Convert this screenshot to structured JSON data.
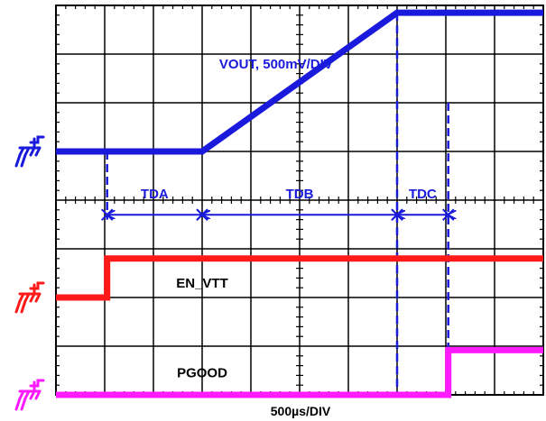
{
  "chart_data": {
    "type": "line",
    "title": "",
    "xlabel": "500µs/DIV",
    "grid": true,
    "divisions": {
      "x": 10,
      "y": 8
    },
    "x_unit": "div",
    "xlim": [
      0,
      10
    ],
    "ylim": [
      0,
      8
    ],
    "series": [
      {
        "name": "VOUT, 500mV/DIV",
        "color": "#1a1adc",
        "ground_level_div": 5.0,
        "points": [
          [
            0,
            5.0
          ],
          [
            3.0,
            5.0
          ],
          [
            7.0,
            7.85
          ],
          [
            10,
            7.85
          ]
        ]
      },
      {
        "name": "EN_VTT",
        "color": "#ff1a1a",
        "ground_level_div": 2.0,
        "points": [
          [
            0,
            2.0
          ],
          [
            1.05,
            2.0
          ],
          [
            1.05,
            2.8
          ],
          [
            10,
            2.8
          ]
        ]
      },
      {
        "name": "PGOOD",
        "color": "#ff1aff",
        "ground_level_div": 0.0,
        "points": [
          [
            0,
            0.0
          ],
          [
            8.05,
            0.0
          ],
          [
            8.05,
            0.92
          ],
          [
            10,
            0.92
          ]
        ]
      }
    ],
    "markers": [
      {
        "x": 7.0,
        "ymin": 0,
        "ymax": 7.85,
        "style": "dashed",
        "color": "#1a1adc"
      },
      {
        "x": 8.05,
        "ymin": 0,
        "ymax": 6.0,
        "style": "dashed",
        "color": "#1a1adc"
      },
      {
        "x": 1.05,
        "ymin": 3.6,
        "ymax": 5.0,
        "style": "dashed",
        "color": "#1a1adc"
      }
    ],
    "intervals": [
      {
        "label": "TDA",
        "from": 1.05,
        "to": 3.0
      },
      {
        "label": "TDB",
        "from": 3.0,
        "to": 7.0
      },
      {
        "label": "TDC",
        "from": 7.0,
        "to": 8.05
      }
    ],
    "interval_y_div": 3.7,
    "interval_label_y_div": 4.15,
    "annotations": [
      {
        "text": "VOUT, 500mV/DIV",
        "x": 3.35,
        "y": 6.8,
        "color": "#1a1adc"
      },
      {
        "text": "EN_VTT",
        "x": 3.0,
        "y": 2.3,
        "color": "#000000"
      },
      {
        "text": "PGOOD",
        "x": 3.0,
        "y": 0.45,
        "color": "#000000"
      }
    ],
    "ground_markers": [
      {
        "color": "#1a1adc",
        "y": 5.0
      },
      {
        "color": "#ff1a1a",
        "y": 2.0
      },
      {
        "color": "#ff1aff",
        "y": 0.0
      }
    ]
  }
}
